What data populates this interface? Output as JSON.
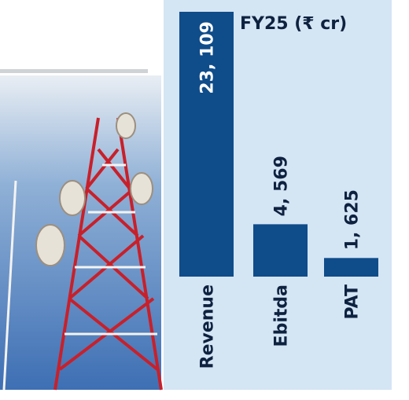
{
  "chart_data": {
    "type": "bar",
    "title": "FY25 (₹ cr)",
    "categories": [
      "Revenue",
      "Ebitda",
      "PAT"
    ],
    "values": [
      23109,
      4569,
      1625
    ],
    "value_labels": [
      "23, 109",
      "4, 569",
      "1, 625"
    ],
    "color": "#0f4c8a"
  }
}
